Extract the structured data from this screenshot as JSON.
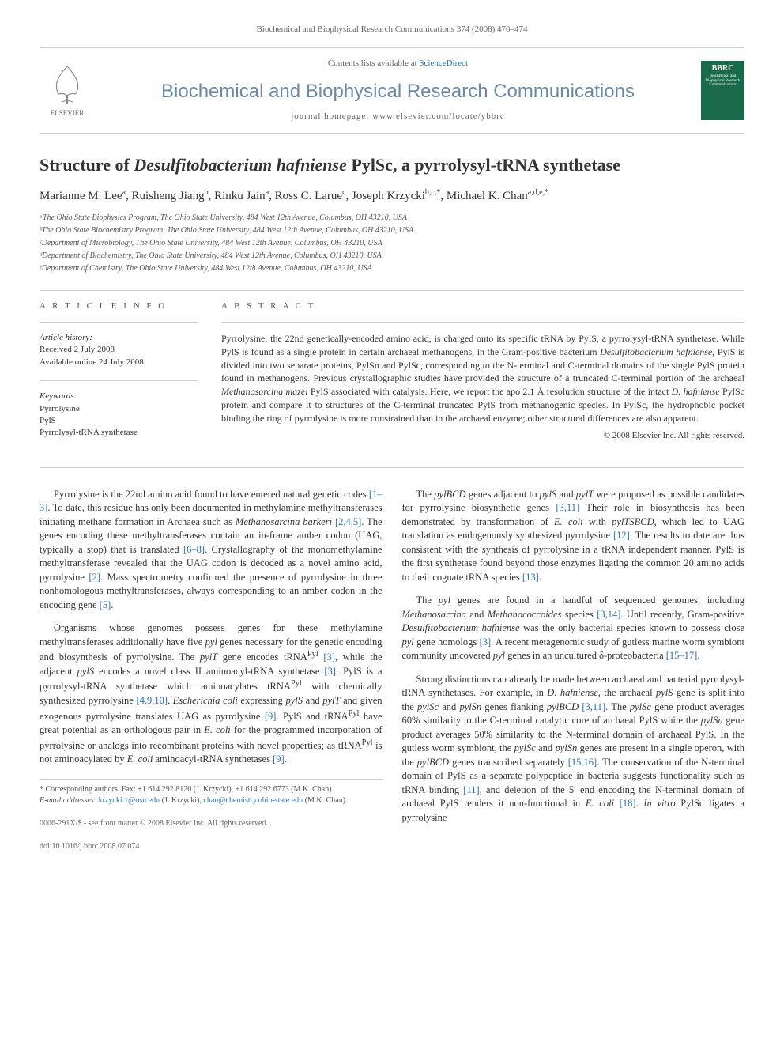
{
  "header": {
    "citation": "Biochemical and Biophysical Research Communications 374 (2008) 470–474",
    "contents_prefix": "Contents lists available at ",
    "contents_link": "ScienceDirect",
    "journal_title": "Biochemical and Biophysical Research Communications",
    "homepage_label": "journal homepage: www.elsevier.com/locate/ybbrc",
    "publisher": "ELSEVIER",
    "cover_abbrev": "BBRC",
    "cover_small": "Biochemical and Biophysical Research Communications"
  },
  "article": {
    "title_html": "Structure of <em>Desulfitobacterium hafniense</em> PylSc, a pyrrolysyl-tRNA synthetase",
    "authors_html": "Marianne M. Lee<sup>a</sup>, Ruisheng Jiang<sup>b</sup>, Rinku Jain<sup>a</sup>, Ross C. Larue<sup>c</sup>, Joseph Krzycki<sup>b,c,*</sup>, Michael K. Chan<sup>a,d,e,*</sup>",
    "affiliations": [
      "ᵃThe Ohio State Biophysics Program, The Ohio State University, 484 West 12th Avenue, Columbus, OH 43210, USA",
      "ᵇThe Ohio State Biochemistry Program, The Ohio State University, 484 West 12th Avenue, Columbus, OH 43210, USA",
      "ᶜDepartment of Microbiology, The Ohio State University, 484 West 12th Avenue, Columbus, OH 43210, USA",
      "ᵈDepartment of Biochemistry, The Ohio State University, 484 West 12th Avenue, Columbus, OH 43210, USA",
      "ᵉDepartment of Chemistry, The Ohio State University, 484 West 12th Avenue, Columbus, OH 43210, USA"
    ]
  },
  "info": {
    "heading": "A R T I C L E   I N F O",
    "history_label": "Article history:",
    "received": "Received 2 July 2008",
    "online": "Available online 24 July 2008",
    "keywords_label": "Keywords:",
    "keywords": [
      "Pyrrolysine",
      "PylS",
      "Pyrrolysyl-tRNA synthetase"
    ]
  },
  "abstract": {
    "heading": "A B S T R A C T",
    "text_html": "Pyrrolysine, the 22nd genetically-encoded amino acid, is charged onto its specific tRNA by PylS, a pyrrolysyl-tRNA synthetase. While PylS is found as a single protein in certain archaeal methanogens, in the Gram-positive bacterium <em>Desulfitobacterium hafniense</em>, PylS is divided into two separate proteins, PylSn and PylSc, corresponding to the N-terminal and C-terminal domains of the single PylS protein found in methanogens. Previous crystallographic studies have provided the structure of a truncated C-terminal portion of the archaeal <em>Methanosarcina mazei</em> PylS associated with catalysis. Here, we report the apo 2.1 Å resolution structure of the intact <em>D. hafniense</em> PylSc protein and compare it to structures of the C-terminal truncated PylS from methanogenic species. In PylSc, the hydrophobic pocket binding the ring of pyrrolysine is more constrained than in the archaeal enzyme; other structural differences are also apparent.",
    "copyright": "© 2008 Elsevier Inc. All rights reserved."
  },
  "body": {
    "left": [
      "Pyrrolysine is the 22nd amino acid found to have entered natural genetic codes <span class=\"ref-link\">[1–3]</span>. To date, this residue has only been documented in methylamine methyltransferases initiating methane formation in Archaea such as <em>Methanosarcina barkeri</em> <span class=\"ref-link\">[2,4,5]</span>. The genes encoding these methyltransferases contain an in-frame amber codon (UAG, typically a stop) that is translated <span class=\"ref-link\">[6–8]</span>. Crystallography of the monomethylamine methyltransferase revealed that the UAG codon is decoded as a novel amino acid, pyrrolysine <span class=\"ref-link\">[2]</span>. Mass spectrometry confirmed the presence of pyrrolysine in three nonhomologous methyltransferases, always corresponding to an amber codon in the encoding gene <span class=\"ref-link\">[5]</span>.",
      "Organisms whose genomes possess genes for these methylamine methyltransferases additionally have five <em>pyl</em> genes necessary for the genetic encoding and biosynthesis of pyrrolysine. The <em>pylT</em> gene encodes tRNA<sup>Pyl</sup> <span class=\"ref-link\">[3]</span>, while the adjacent <em>pylS</em> encodes a novel class II aminoacyl-tRNA synthetase <span class=\"ref-link\">[3]</span>. PylS is a pyrrolysyl-tRNA synthetase which aminoacylates tRNA<sup>Pyl</sup> with chemically synthesized pyrrolysine <span class=\"ref-link\">[4,9,10]</span>. <em>Escherichia coli</em> expressing <em>pylS</em> and <em>pylT</em> and given exogenous pyrrolysine translates UAG as pyrrolysine <span class=\"ref-link\">[9]</span>. PylS and tRNA<sup>Pyl</sup> have great potential as an orthologous pair in <em>E. coli</em> for the programmed incorporation of pyrrolysine or analogs into recombinant proteins with novel properties; as tRNA<sup>Pyl</sup> is not aminoacylated by <em>E. coli</em> aminoacyl-tRNA synthetases <span class=\"ref-link\">[9]</span>."
    ],
    "right": [
      "The <em>pylBCD</em> genes adjacent to <em>pylS</em> and <em>pylT</em> were proposed as possible candidates for pyrrolysine biosynthetic genes <span class=\"ref-link\">[3,11]</span> Their role in biosynthesis has been demonstrated by transformation of <em>E. coli</em> with <em>pylTSBCD</em>, which led to UAG translation as endogenously synthesized pyrrolysine <span class=\"ref-link\">[12]</span>. The results to date are thus consistent with the synthesis of pyrrolysine in a tRNA independent manner. PylS is the first synthetase found beyond those enzymes ligating the common 20 amino acids to their cognate tRNA species <span class=\"ref-link\">[13]</span>.",
      "The <em>pyl</em> genes are found in a handful of sequenced genomes, including <em>Methanosarcina</em> and <em>Methanococcoides</em> species <span class=\"ref-link\">[3,14]</span>. Until recently, Gram-positive <em>Desulfitobacterium hafniense</em> was the only bacterial species known to possess close <em>pyl</em> gene homologs <span class=\"ref-link\">[3]</span>. A recent metagenomic study of gutless marine worm symbiont community uncovered <em>pyl</em> genes in an uncultured δ-proteobacteria <span class=\"ref-link\">[15–17]</span>.",
      "Strong distinctions can already be made between archaeal and bacterial pyrrolysyl-tRNA synthetases. For example, in <em>D. hafniense</em>, the archaeal <em>pylS</em> gene is split into the <em>pylSc</em> and <em>pylSn</em> genes flanking <em>pylBCD</em> <span class=\"ref-link\">[3,11]</span>. The <em>pylSc</em> gene product averages 60% similarity to the C-terminal catalytic core of archaeal PylS while the <em>pylSn</em> gene product averages 50% similarity to the N-terminal domain of archaeal PylS. In the gutless worm symbiont, the <em>pylSc</em> and <em>pylSn</em> genes are present in a single operon, with the <em>pylBCD</em> genes transcribed separately <span class=\"ref-link\">[15,16]</span>. The conservation of the N-terminal domain of PylS as a separate polypeptide in bacteria suggests functionality such as tRNA binding <span class=\"ref-link\">[11]</span>, and deletion of the 5′ end encoding the N-terminal domain of archaeal PylS renders it non-functional in <em>E. coli</em> <span class=\"ref-link\">[18]</span>. <em>In vitro</em> PylSc ligates a pyrrolysine"
    ]
  },
  "footnotes": {
    "corresponding": "* Corresponding authors. Fax: +1 614 292 8120 (J. Krzycki), +1 614 292 6773 (M.K. Chan).",
    "emails_label": "E-mail addresses:",
    "email1": "krzycki.1@osu.edu",
    "email1_who": "(J. Krzycki),",
    "email2": "chan@chemistry.ohio-state.edu",
    "email2_who": "(M.K. Chan)."
  },
  "footer": {
    "line1": "0006-291X/$ - see front matter © 2008 Elsevier Inc. All rights reserved.",
    "line2": "doi:10.1016/j.bbrc.2008.07.074"
  },
  "colors": {
    "link": "#2a6fb5",
    "journal_title": "#6a8aa8",
    "cover_bg": "#1a6b4a",
    "text": "#333333",
    "muted": "#666666",
    "rule": "#cccccc"
  }
}
